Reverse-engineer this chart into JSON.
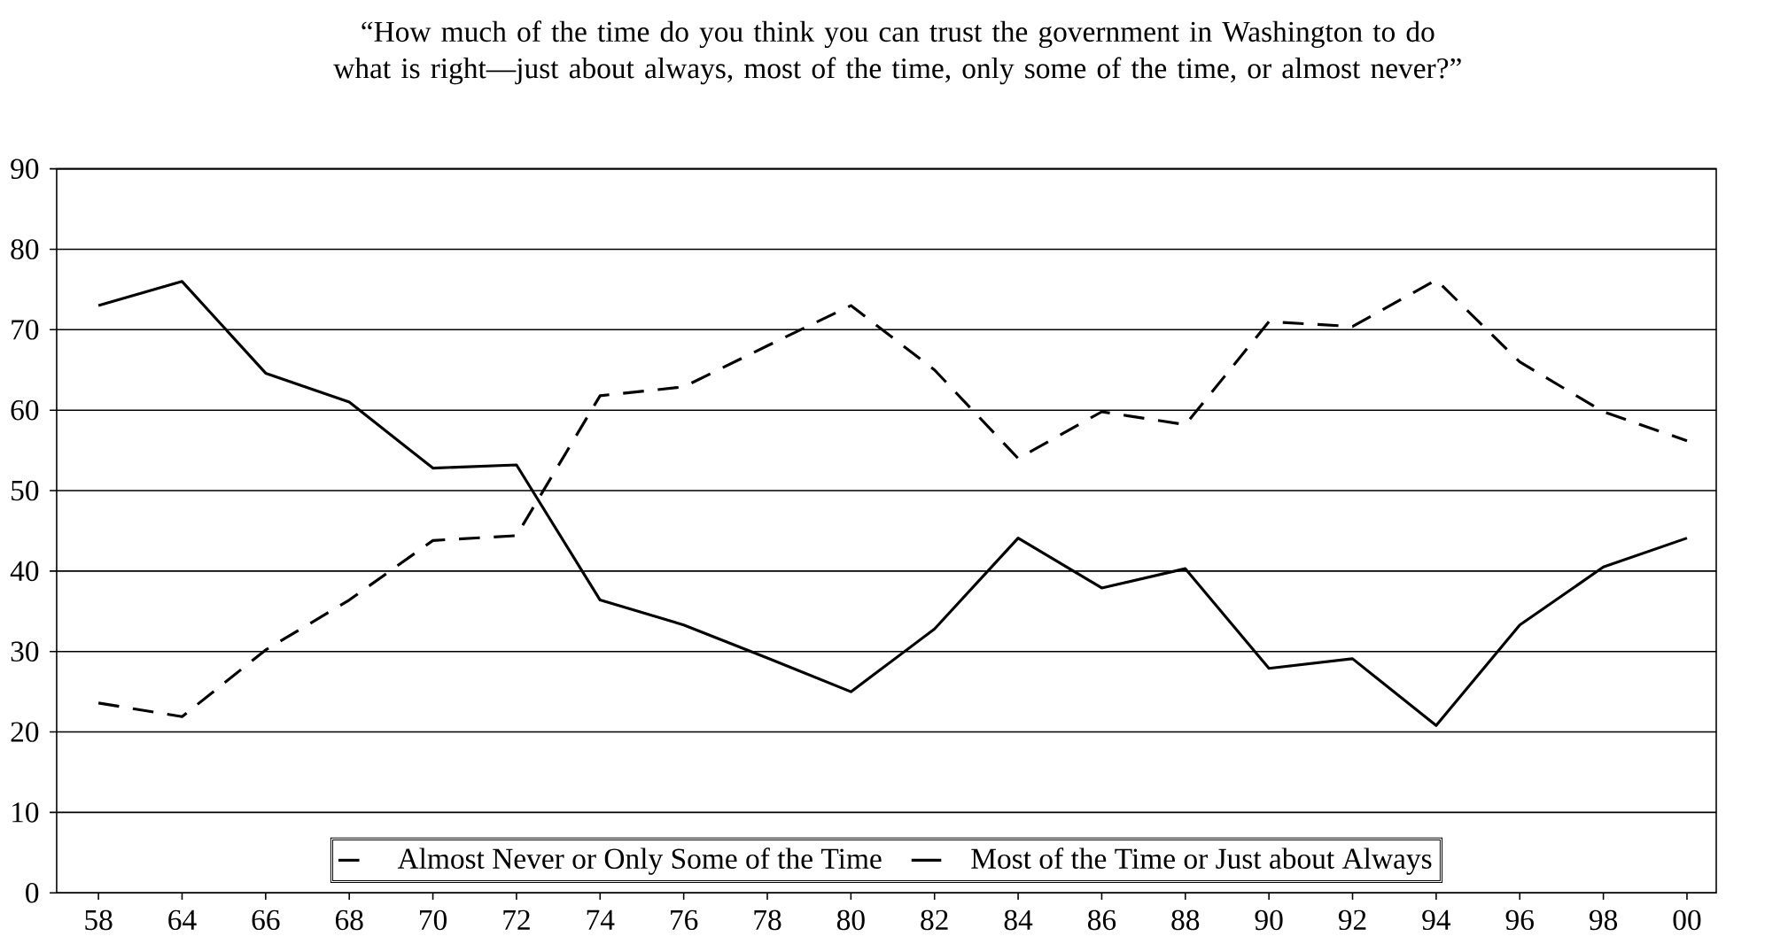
{
  "chart_data": {
    "type": "line",
    "title": "“How much of the time do you think you can trust the government in Washington to do what is right—just about always, most of the time, only some of the time, or almost never?”",
    "categories": [
      "58",
      "64",
      "66",
      "68",
      "70",
      "72",
      "74",
      "76",
      "78",
      "80",
      "82",
      "84",
      "86",
      "88",
      "90",
      "92",
      "94",
      "96",
      "98",
      "00"
    ],
    "ylim": [
      0,
      90
    ],
    "yticks": [
      0,
      10,
      20,
      30,
      40,
      50,
      60,
      70,
      80,
      90
    ],
    "grid": "y",
    "legend": "bottom",
    "series": [
      {
        "name": "Almost Never or Only Some of the Time",
        "color": "#000000",
        "line_style": "dashed",
        "values": [
          23.6,
          21.9,
          30.2,
          36.4,
          43.8,
          44.4,
          61.8,
          62.9,
          68.0,
          73.0,
          65.0,
          54.0,
          59.8,
          58.2,
          71.0,
          70.4,
          76.2,
          66.0,
          59.8,
          56.2
        ]
      },
      {
        "name": "Most of the Time or Just about Always",
        "color": "#000000",
        "line_style": "solid",
        "values": [
          73.0,
          76.0,
          64.6,
          61.0,
          52.8,
          53.2,
          36.4,
          33.3,
          29.2,
          25.0,
          32.8,
          44.1,
          37.9,
          40.3,
          27.9,
          29.1,
          20.8,
          33.3,
          40.5,
          44.1
        ]
      }
    ]
  }
}
